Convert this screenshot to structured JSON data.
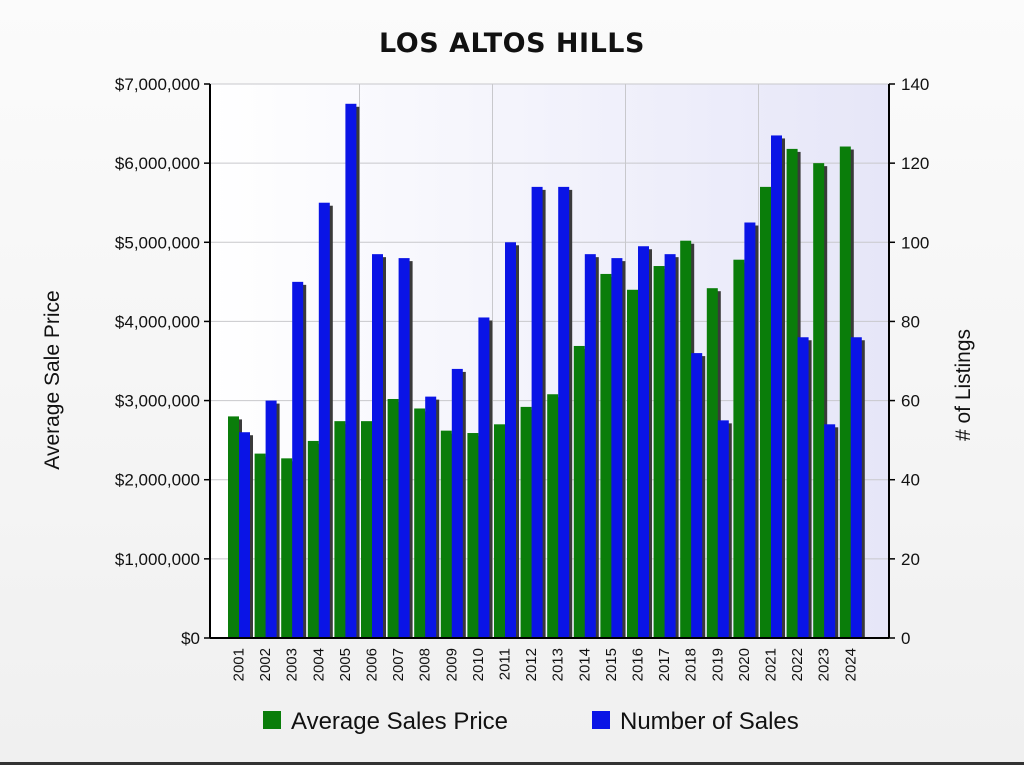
{
  "chart_data": {
    "type": "bar",
    "title": "LOS ALTOS HILLS",
    "ylabel": "Average Sale Price",
    "y2label": "#   of Listings",
    "categories": [
      "2001",
      "2002",
      "2003",
      "2004",
      "2005",
      "2006",
      "2007",
      "2008",
      "2009",
      "2010",
      "2011",
      "2012",
      "2013",
      "2014",
      "2015",
      "2016",
      "2017",
      "2018",
      "2019",
      "2020",
      "2021",
      "2022",
      "2023",
      "2024"
    ],
    "series": [
      {
        "name": "Average Sales Price",
        "axis": "left",
        "color": "#0a7d0a",
        "values": [
          2800000,
          2330000,
          2270000,
          2490000,
          2740000,
          2740000,
          3020000,
          2900000,
          2620000,
          2590000,
          2700000,
          2920000,
          3080000,
          3690000,
          4600000,
          4400000,
          4700000,
          5020000,
          4420000,
          4780000,
          5700000,
          6180000,
          6000000,
          6210000
        ]
      },
      {
        "name": "Number of Sales",
        "axis": "right",
        "color": "#0a14e6",
        "values": [
          52,
          60,
          90,
          110,
          135,
          97,
          96,
          61,
          68,
          81,
          100,
          114,
          114,
          97,
          96,
          99,
          97,
          72,
          55,
          105,
          127,
          76,
          54,
          76
        ]
      }
    ],
    "ylim": [
      0,
      7000000
    ],
    "y2lim": [
      0,
      140
    ],
    "yticks": [
      "$0",
      "$1,000,000",
      "$2,000,000",
      "$3,000,000",
      "$4,000,000",
      "$5,000,000",
      "$6,000,000",
      "$7,000,000"
    ],
    "y2ticks": [
      "0",
      "20",
      "40",
      "60",
      "80",
      "100",
      "120",
      "140"
    ],
    "grid": true,
    "legend_position": "bottom"
  }
}
